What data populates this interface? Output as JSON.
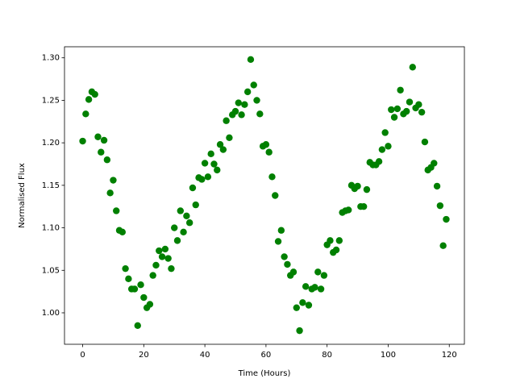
{
  "chart_data": {
    "type": "scatter",
    "x_label": "Time (Hours)",
    "y_label": "Normalised Flux",
    "series": [
      {
        "color": "#008000",
        "x": [
          0,
          1,
          2,
          3,
          4,
          5,
          6,
          7,
          8,
          9,
          10,
          11,
          12,
          13,
          14,
          15,
          16,
          17,
          18,
          19,
          20,
          21,
          22,
          23,
          24,
          25,
          26,
          27,
          28,
          29,
          30,
          31,
          32,
          33,
          34,
          35,
          36,
          37,
          38,
          39,
          40,
          41,
          42,
          43,
          44,
          45,
          46,
          47,
          48,
          49,
          50,
          51,
          52,
          53,
          54,
          55,
          56,
          57,
          58,
          59,
          60,
          61,
          62,
          63,
          64,
          65,
          66,
          67,
          68,
          69,
          70,
          71,
          72,
          73,
          74,
          75,
          76,
          77,
          78,
          79,
          80,
          81,
          82,
          83,
          84,
          85,
          86,
          87,
          88,
          89,
          90,
          91,
          92,
          93,
          94,
          95,
          96,
          97,
          98,
          99,
          100,
          101,
          102,
          103,
          104,
          105,
          106,
          107,
          108,
          109,
          110,
          111,
          112,
          113,
          114,
          115,
          116,
          117,
          118,
          119
        ],
        "values": [
          1.202,
          1.234,
          1.251,
          1.26,
          1.257,
          1.207,
          1.189,
          1.203,
          1.18,
          1.141,
          1.156,
          1.12,
          1.097,
          1.095,
          1.052,
          1.04,
          1.028,
          1.028,
          0.985,
          1.033,
          1.018,
          1.006,
          1.01,
          1.044,
          1.056,
          1.073,
          1.066,
          1.075,
          1.064,
          1.052,
          1.1,
          1.085,
          1.12,
          1.095,
          1.114,
          1.106,
          1.147,
          1.127,
          1.159,
          1.157,
          1.176,
          1.16,
          1.187,
          1.175,
          1.168,
          1.198,
          1.192,
          1.226,
          1.206,
          1.233,
          1.237,
          1.247,
          1.233,
          1.245,
          1.26,
          1.298,
          1.268,
          1.25,
          1.234,
          1.196,
          1.198,
          1.189,
          1.16,
          1.138,
          1.084,
          1.097,
          1.066,
          1.057,
          1.044,
          1.048,
          1.006,
          0.979,
          1.012,
          1.031,
          1.009,
          1.028,
          1.03,
          1.048,
          1.028,
          1.044,
          1.08,
          1.085,
          1.071,
          1.074,
          1.085,
          1.118,
          1.12,
          1.121,
          1.15,
          1.146,
          1.149,
          1.125,
          1.125,
          1.145,
          1.177,
          1.174,
          1.174,
          1.178,
          1.192,
          1.212,
          1.196,
          1.239,
          1.23,
          1.24,
          1.262,
          1.234,
          1.237,
          1.248,
          1.289,
          1.241,
          1.245,
          1.236,
          1.201,
          1.168,
          1.171,
          1.176,
          1.149,
          1.126,
          1.079,
          1.11
        ]
      }
    ],
    "xlim": [
      -5.95,
      124.95
    ],
    "xticks": [
      0,
      20,
      40,
      60,
      80,
      100,
      120
    ],
    "ylim": [
      0.963,
      1.313
    ],
    "yticks": [
      {
        "value": 1.0,
        "label": "1.00"
      },
      {
        "value": 1.05,
        "label": "1.05"
      },
      {
        "value": 1.1,
        "label": "1.10"
      },
      {
        "value": 1.15,
        "label": "1.15"
      },
      {
        "value": 1.2,
        "label": "1.20"
      },
      {
        "value": 1.25,
        "label": "1.25"
      },
      {
        "value": 1.3,
        "label": "1.30"
      }
    ]
  }
}
